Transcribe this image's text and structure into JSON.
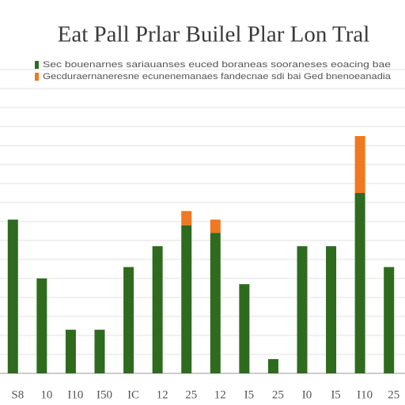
{
  "chart_data": {
    "type": "bar",
    "stacked": true,
    "title": "Eat Pall Prlar Builel Plar Lon Tral",
    "categories": [
      "S8",
      "10",
      "I10",
      "I50",
      "IC",
      "12",
      "25",
      "12",
      "I5",
      "25",
      "I0",
      "I5",
      "I10",
      "25"
    ],
    "series": [
      {
        "name": "Sec bouenarnes sariauanses euced boraneas sooraneses eoacing bae",
        "color": "#2e6b1e",
        "values": [
          8.1,
          5.0,
          2.3,
          2.3,
          5.6,
          6.7,
          7.8,
          7.4,
          4.7,
          0.75,
          6.7,
          6.7,
          9.5,
          5.6
        ]
      },
      {
        "name": "Gecduraernaneresne ecunenemanaes fandecnae sdi bai Ged bnenoeanadia",
        "color": "#f07820",
        "values": [
          null,
          null,
          null,
          null,
          null,
          null,
          0.75,
          0.7,
          null,
          null,
          null,
          null,
          3.0,
          null
        ]
      }
    ],
    "ylim": [
      0,
      16
    ],
    "yticks": [
      0,
      1,
      2,
      3,
      4,
      5,
      6,
      7,
      8,
      9,
      10,
      11,
      12,
      13,
      14,
      15,
      16
    ],
    "grid": true
  }
}
